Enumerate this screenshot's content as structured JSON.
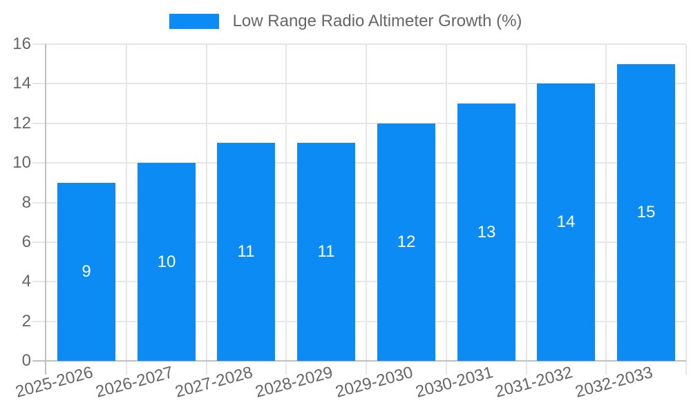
{
  "legend": {
    "label": "Low Range Radio Altimeter Growth (%)"
  },
  "colors": {
    "bar": "#0d8bf5",
    "grid": "#e6e6e6",
    "axis": "#bfbfbf",
    "text": "#666666",
    "data_label": "#ffffff"
  },
  "chart_data": {
    "type": "bar",
    "title": "Low Range Radio Altimeter Growth (%)",
    "categories": [
      "2025-2026",
      "2026-2027",
      "2027-2028",
      "2028-2029",
      "2029-2030",
      "2030-2031",
      "2031-2032",
      "2032-2033"
    ],
    "values": [
      9,
      10,
      11,
      11,
      12,
      13,
      14,
      15
    ],
    "value_labels": [
      "9",
      "10",
      "11",
      "11",
      "12",
      "13",
      "14",
      "15"
    ],
    "xlabel": "",
    "ylabel": "",
    "ylim": [
      0,
      16
    ],
    "ytick_step": 2,
    "yticks": [
      "0",
      "2",
      "4",
      "6",
      "8",
      "10",
      "12",
      "14",
      "16"
    ],
    "grid": true,
    "legend_position": "top",
    "xtick_rotation_deg": 15,
    "data_label_position": "center"
  }
}
